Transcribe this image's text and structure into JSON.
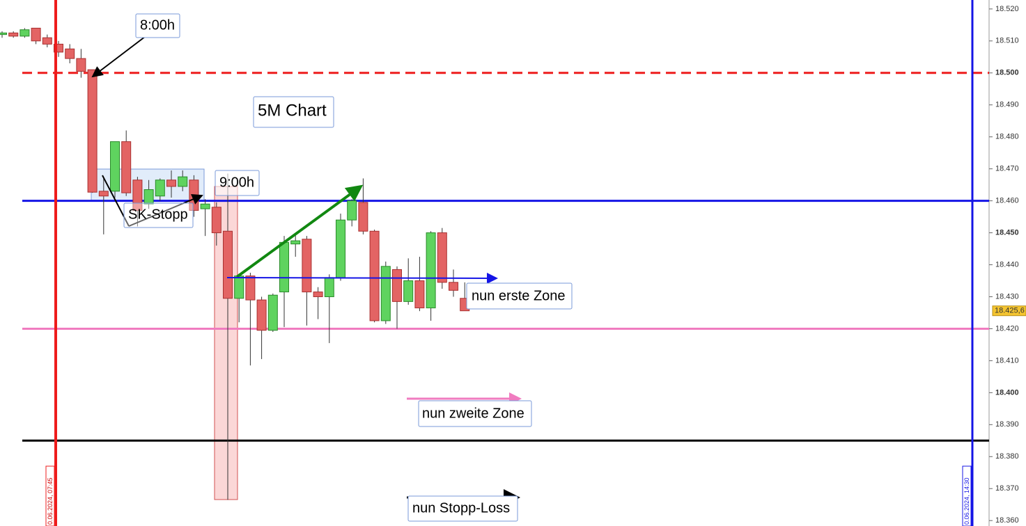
{
  "chart_data": {
    "type": "candlestick",
    "up_color": "#5fd35f",
    "down_color": "#e36464",
    "categories": [
      null,
      null,
      null,
      null,
      null,
      null,
      null,
      null,
      null,
      null,
      null,
      null,
      null,
      null,
      null,
      null,
      null,
      null,
      null,
      null,
      null,
      null,
      null,
      null,
      null,
      null,
      null,
      null,
      null,
      null,
      null,
      null,
      null,
      null,
      null,
      null,
      null,
      null,
      null,
      null,
      null,
      null
    ],
    "open": [
      18.512,
      18.5125,
      18.5115,
      18.514,
      18.511,
      18.509,
      18.5075,
      18.5045,
      18.501,
      18.463,
      18.463,
      18.4785,
      18.4665,
      18.459,
      18.4615,
      18.4665,
      18.4645,
      18.4665,
      18.4575,
      18.458,
      18.4505,
      18.4295,
      18.4365,
      18.429,
      18.4195,
      18.4315,
      18.4465,
      18.448,
      18.4315,
      18.43,
      18.436,
      18.454,
      18.4595,
      18.4505,
      18.4225,
      18.4385,
      18.4285,
      18.435,
      18.4265,
      18.45,
      18.4345,
      18.4295
    ],
    "high": [
      18.513,
      18.513,
      18.514,
      18.514,
      18.512,
      18.51,
      18.509,
      18.5075,
      18.501,
      18.4675,
      18.4785,
      18.482,
      18.4675,
      18.4665,
      18.467,
      18.4695,
      18.4695,
      18.468,
      18.4605,
      18.4595,
      18.4685,
      18.437,
      18.4375,
      18.43,
      18.431,
      18.449,
      18.4495,
      18.449,
      18.433,
      18.437,
      18.456,
      18.4605,
      18.467,
      18.451,
      18.441,
      18.4395,
      18.442,
      18.4425,
      18.4505,
      18.4515,
      18.4385,
      18.4345
    ],
    "low": [
      18.511,
      18.511,
      18.511,
      18.509,
      18.508,
      18.505,
      18.503,
      18.4985,
      18.4625,
      18.4495,
      18.461,
      18.4615,
      18.452,
      18.4575,
      18.46,
      18.461,
      18.463,
      18.455,
      18.449,
      18.446,
      18.3665,
      18.422,
      18.4085,
      18.4105,
      18.419,
      18.4205,
      18.4425,
      18.421,
      18.423,
      18.4155,
      18.435,
      18.452,
      18.4495,
      18.422,
      18.4215,
      18.42,
      18.4275,
      18.4255,
      18.4225,
      18.4325,
      18.43,
      18.4256
    ],
    "close": [
      18.5125,
      18.5115,
      18.5135,
      18.51,
      18.509,
      18.5065,
      18.5045,
      18.5005,
      18.4627,
      18.4615,
      18.4785,
      18.4625,
      18.457,
      18.4635,
      18.4665,
      18.4645,
      18.4675,
      18.457,
      18.459,
      18.45,
      18.4295,
      18.4365,
      18.429,
      18.4195,
      18.4305,
      18.447,
      18.4475,
      18.4315,
      18.43,
      18.436,
      18.454,
      18.46,
      18.4505,
      18.4225,
      18.4395,
      18.4285,
      18.435,
      18.4265,
      18.45,
      18.4345,
      18.432,
      18.4256
    ],
    "ylim": [
      18.3583,
      18.5228
    ],
    "yticks": [
      {
        "value": 18.52,
        "label": "18.520"
      },
      {
        "value": 18.51,
        "label": "18.510"
      },
      {
        "value": 18.5,
        "label": "18.500"
      },
      {
        "value": 18.49,
        "label": "18.490"
      },
      {
        "value": 18.48,
        "label": "18.480"
      },
      {
        "value": 18.47,
        "label": "18.470"
      },
      {
        "value": 18.46,
        "label": "18.460"
      },
      {
        "value": 18.45,
        "label": "18.450"
      },
      {
        "value": 18.44,
        "label": "18.440"
      },
      {
        "value": 18.43,
        "label": "18.430"
      },
      {
        "value": 18.42,
        "label": "18.420"
      },
      {
        "value": 18.41,
        "label": "18.410"
      },
      {
        "value": 18.4,
        "label": "18.400"
      },
      {
        "value": 18.39,
        "label": "18.390"
      },
      {
        "value": 18.38,
        "label": "18.380"
      },
      {
        "value": 18.37,
        "label": "18.370"
      },
      {
        "value": 18.36,
        "label": "18.360"
      }
    ],
    "hlines": [
      {
        "value": 18.5,
        "color": "#ee1c1c",
        "dashed": true
      },
      {
        "value": 18.46,
        "color": "#1414e6",
        "dashed": false
      },
      {
        "value": 18.42,
        "color": "#f07cc0",
        "dashed": false
      },
      {
        "value": 18.385,
        "color": "#000000",
        "dashed": false
      }
    ],
    "last_price": {
      "value": 18.4256,
      "label": "18.425,6"
    },
    "time_labels": [
      "0.06.2024, 07:45",
      "0.06.2024, 14:30"
    ],
    "annotations": {
      "t8": "8:00h",
      "chart": "5M Chart",
      "t9": "9:00h",
      "sk": "SK-Stopp",
      "z1": "nun erste Zone",
      "z2": "nun zweite Zone",
      "sl": "nun Stopp-Loss"
    }
  }
}
